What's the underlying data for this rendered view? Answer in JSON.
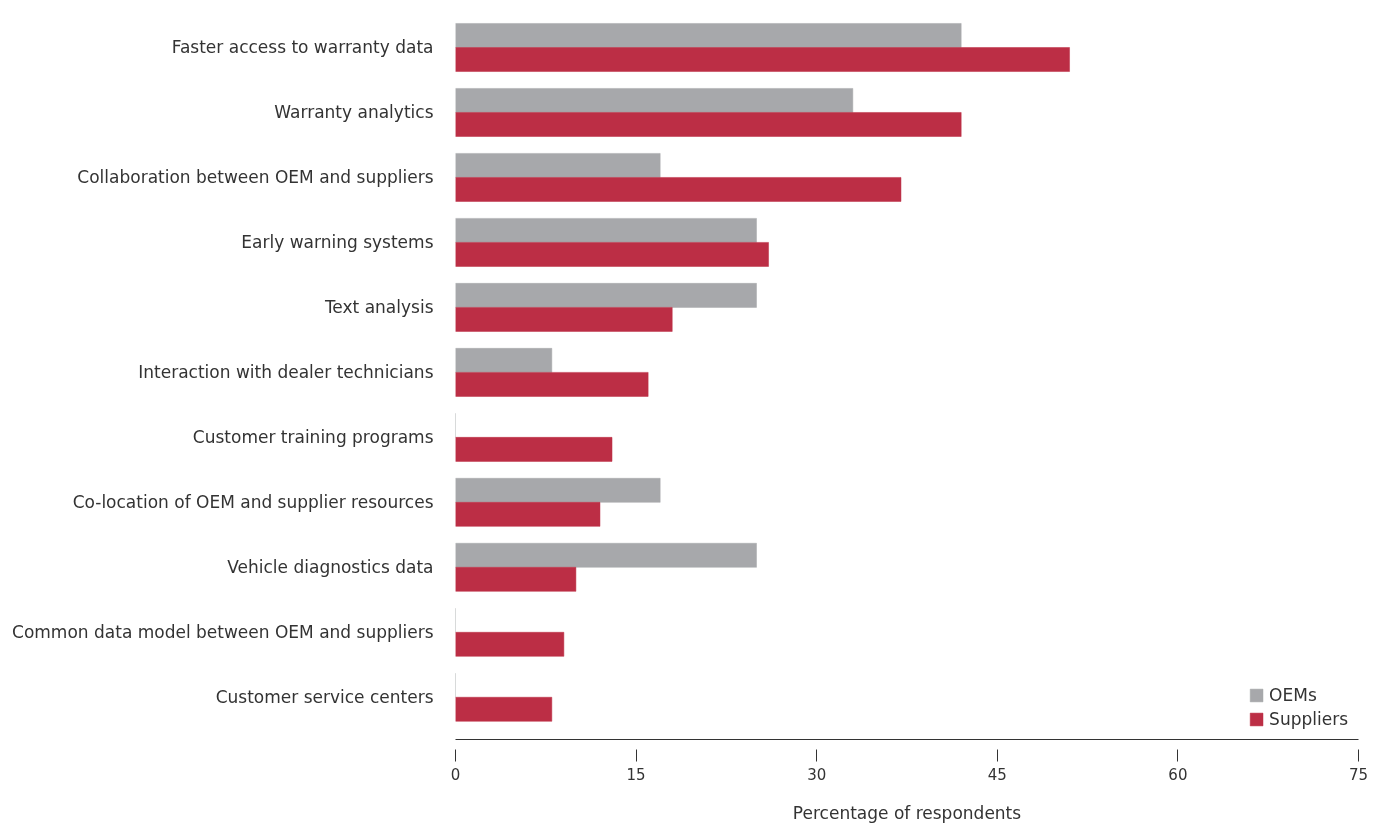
{
  "chart_data": {
    "type": "bar",
    "orientation": "horizontal",
    "xlabel": "Percentage of respondents",
    "categories": [
      "Faster access to warranty data",
      "Warranty analytics",
      "Collaboration between OEM and suppliers",
      "Early warning systems",
      "Text analysis",
      "Interaction with dealer technicians",
      "Customer training programs",
      "Co-location of OEM and supplier resources",
      "Vehicle diagnostics data",
      "Common data model between OEM and suppliers",
      "Customer service centers"
    ],
    "series": [
      {
        "name": "OEMs",
        "color": "#a7a8ab",
        "values": [
          42,
          33,
          17,
          25,
          25,
          8,
          0,
          17,
          25,
          0,
          0
        ]
      },
      {
        "name": "Suppliers",
        "color": "#bc2e45",
        "values": [
          51,
          42,
          37,
          26,
          18,
          16,
          13,
          12,
          10,
          9,
          8
        ]
      }
    ],
    "xlim": [
      0,
      75
    ],
    "xticks": [
      0,
      15,
      30,
      45,
      60,
      75
    ],
    "grid": false,
    "legend": "bottom right"
  }
}
